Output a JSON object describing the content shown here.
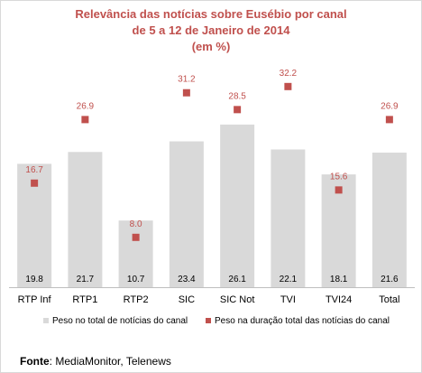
{
  "chart_data": {
    "type": "bar",
    "title": [
      "Relevância das notícias sobre Eusébio por canal",
      "de 5 a 12 de Janeiro de 2014",
      "(em %)"
    ],
    "categories": [
      "RTP Inf",
      "RTP1",
      "RTP2",
      "SIC",
      "SIC Not",
      "TVI",
      "TVI24",
      "Total"
    ],
    "series": [
      {
        "name": "Peso no total de notícias do canal",
        "kind": "bar",
        "values": [
          19.8,
          21.7,
          10.7,
          23.4,
          26.1,
          22.1,
          18.1,
          21.6
        ],
        "color": "#d9d9d9"
      },
      {
        "name": "Peso na duração total das notícias do canal",
        "kind": "marker",
        "values": [
          16.7,
          26.9,
          8.0,
          31.2,
          28.5,
          32.2,
          15.6,
          26.9
        ],
        "color": "#c0504d"
      }
    ],
    "bar_labels": [
      "19.8",
      "21.7",
      "10.7",
      "23.4",
      "26.1",
      "22.1",
      "18.1",
      "21.6"
    ],
    "marker_labels": [
      "16.7",
      "26.9",
      "8.0",
      "31.2",
      "28.5",
      "32.2",
      "15.6",
      "26.9"
    ],
    "ylim": [
      0,
      36
    ],
    "grid": false,
    "legend": "bottom"
  },
  "source": {
    "label": "Fonte",
    "text": "MediaMonitor, Telenews"
  }
}
